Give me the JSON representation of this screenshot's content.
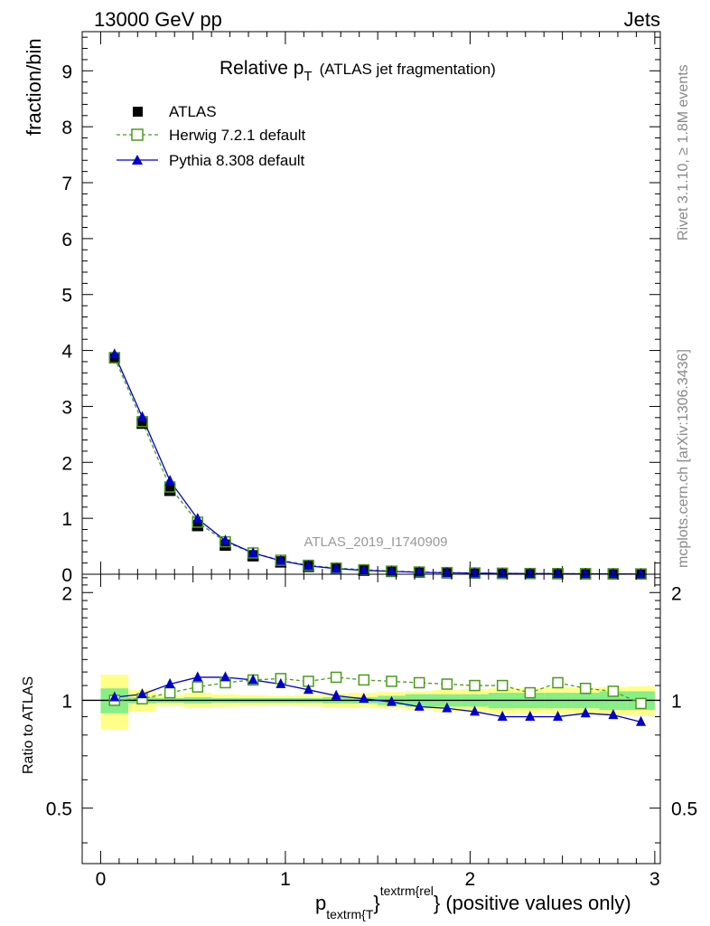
{
  "header": {
    "left": "13000 GeV pp",
    "right": "Jets"
  },
  "side": {
    "rivet": "Rivet 3.1.10, ≥ 1.8M events",
    "source": "mcplots.cern.ch [arXiv:1306.3436]"
  },
  "watermark": "ATLAS_2019_I1740909",
  "title": {
    "main": "Relative p",
    "sub": "T",
    "paren": "(ATLAS jet fragmentation)"
  },
  "labels": {
    "ylabel_main": "fraction/bin",
    "ylabel_ratio": "Ratio to ATLAS",
    "xlabel_p": "p",
    "xlabel_sub": "textrm{T",
    "xlabel_brace": "}",
    "xlabel_sup": "textrm{rel",
    "xlabel_rest": "} (positive values only)"
  },
  "legend": [
    {
      "label": "ATLAS"
    },
    {
      "label": "Herwig 7.2.1 default"
    },
    {
      "label": "Pythia 8.308 default"
    }
  ],
  "colors": {
    "data": "#000000",
    "herwig": "#4a9a1a",
    "pythia": "#0000cc",
    "band_inner": "#88ee88",
    "band_outer": "#ffff88"
  },
  "chart_data": {
    "type": "line",
    "x": [
      0.075,
      0.225,
      0.375,
      0.525,
      0.675,
      0.825,
      0.975,
      1.125,
      1.275,
      1.425,
      1.575,
      1.725,
      1.875,
      2.025,
      2.175,
      2.325,
      2.475,
      2.625,
      2.775,
      2.925
    ],
    "x_range": [
      -0.1,
      3.03
    ],
    "xticks": [
      0,
      1,
      2,
      3
    ],
    "main": {
      "ylim": [
        0,
        9.7
      ],
      "yticks": [
        0,
        1,
        2,
        3,
        4,
        5,
        6,
        7,
        8,
        9
      ],
      "series": [
        {
          "name": "ATLAS",
          "values": [
            3.87,
            2.7,
            1.5,
            0.87,
            0.52,
            0.33,
            0.22,
            0.14,
            0.1,
            0.07,
            0.05,
            0.035,
            0.025,
            0.02,
            0.015,
            0.012,
            0.01,
            0.008,
            0.006,
            0.005
          ]
        },
        {
          "name": "Herwig 7.2.1 default",
          "values": [
            3.87,
            2.73,
            1.56,
            0.93,
            0.58,
            0.38,
            0.25,
            0.16,
            0.11,
            0.08,
            0.055,
            0.04,
            0.03,
            0.022,
            0.017,
            0.013,
            0.011,
            0.009,
            0.007,
            0.005
          ]
        },
        {
          "name": "Pythia 8.308 default",
          "values": [
            3.93,
            2.81,
            1.67,
            0.99,
            0.6,
            0.38,
            0.24,
            0.15,
            0.1,
            0.07,
            0.05,
            0.034,
            0.024,
            0.019,
            0.014,
            0.011,
            0.009,
            0.0075,
            0.0055,
            0.0045
          ]
        }
      ]
    },
    "ratio": {
      "ylim": [
        0.35,
        2.25
      ],
      "yticks": [
        0.5,
        1,
        2
      ],
      "yscale": "log",
      "band_edges": [
        0.0,
        0.15,
        0.3,
        0.45,
        0.6,
        0.75,
        0.9,
        1.05,
        1.2,
        1.35,
        1.5,
        1.65,
        1.8,
        1.95,
        2.1,
        2.25,
        2.4,
        2.55,
        2.7,
        2.85,
        3.0
      ],
      "band_inner": [
        [
          0.92,
          1.08
        ],
        [
          0.98,
          1.02
        ],
        [
          0.985,
          1.015
        ],
        [
          0.98,
          1.02
        ],
        [
          0.985,
          1.015
        ],
        [
          0.985,
          1.015
        ],
        [
          0.985,
          1.015
        ],
        [
          0.985,
          1.015
        ],
        [
          0.98,
          1.02
        ],
        [
          0.98,
          1.02
        ],
        [
          0.97,
          1.03
        ],
        [
          0.96,
          1.04
        ],
        [
          0.96,
          1.04
        ],
        [
          0.96,
          1.04
        ],
        [
          0.95,
          1.05
        ],
        [
          0.95,
          1.05
        ],
        [
          0.95,
          1.05
        ],
        [
          0.95,
          1.05
        ],
        [
          0.94,
          1.06
        ],
        [
          0.94,
          1.06
        ]
      ],
      "band_outer": [
        [
          0.83,
          1.18
        ],
        [
          0.93,
          1.07
        ],
        [
          0.965,
          1.035
        ],
        [
          0.955,
          1.05
        ],
        [
          0.96,
          1.04
        ],
        [
          0.965,
          1.035
        ],
        [
          0.97,
          1.03
        ],
        [
          0.965,
          1.035
        ],
        [
          0.955,
          1.045
        ],
        [
          0.955,
          1.05
        ],
        [
          0.95,
          1.055
        ],
        [
          0.94,
          1.06
        ],
        [
          0.93,
          1.07
        ],
        [
          0.93,
          1.075
        ],
        [
          0.92,
          1.08
        ],
        [
          0.92,
          1.08
        ],
        [
          0.92,
          1.085
        ],
        [
          0.92,
          1.085
        ],
        [
          0.91,
          1.09
        ],
        [
          0.91,
          1.095
        ]
      ],
      "series": [
        {
          "name": "Herwig 7.2.1 default",
          "values": [
            1.0,
            1.01,
            1.05,
            1.09,
            1.12,
            1.14,
            1.15,
            1.13,
            1.16,
            1.14,
            1.13,
            1.12,
            1.11,
            1.1,
            1.1,
            1.05,
            1.12,
            1.08,
            1.06,
            0.98
          ]
        },
        {
          "name": "Pythia 8.308 default",
          "values": [
            1.02,
            1.04,
            1.11,
            1.16,
            1.16,
            1.14,
            1.11,
            1.07,
            1.03,
            1.01,
            0.99,
            0.96,
            0.95,
            0.93,
            0.9,
            0.9,
            0.9,
            0.92,
            0.91,
            0.87
          ],
          "errors": [
            0.005,
            0.005,
            0.005,
            0.005,
            0.005,
            0.005,
            0.006,
            0.006,
            0.006,
            0.007,
            0.007,
            0.008,
            0.008,
            0.009,
            0.01,
            0.011,
            0.012,
            0.013,
            0.015,
            0.02
          ]
        }
      ]
    }
  }
}
